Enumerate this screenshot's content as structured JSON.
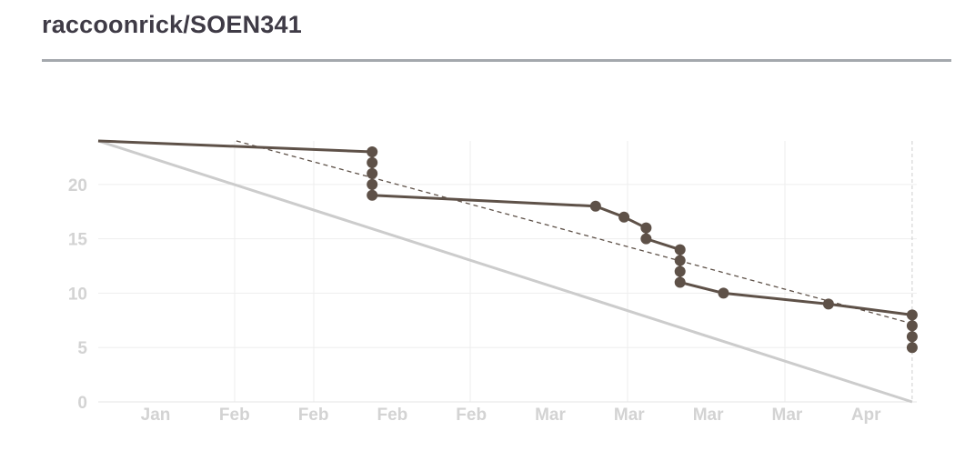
{
  "header": {
    "title": "raccoonrick/SOEN341"
  },
  "chart_data": {
    "type": "line",
    "title": "",
    "xlabel": "",
    "ylabel": "",
    "x_tick_labels": [
      "Jan",
      "Feb",
      "Feb",
      "Feb",
      "Feb",
      "Mar",
      "Mar",
      "Mar",
      "Mar",
      "Apr"
    ],
    "y_ticks": [
      0,
      5,
      10,
      15,
      20
    ],
    "ylim": [
      0,
      24
    ],
    "grid": true,
    "colors": {
      "actual": "#5e5148",
      "ideal": "#cccccc",
      "trend": "#5e5148",
      "grid": "#eeeeee",
      "tick": "#d3d3d3"
    },
    "series": [
      {
        "kind": "actual",
        "style": "solid line with point markers",
        "points": [
          {
            "x": 0.0,
            "y": 24,
            "marker": false
          },
          {
            "x": 3.47,
            "y": 23
          },
          {
            "x": 3.47,
            "y": 22
          },
          {
            "x": 3.47,
            "y": 21
          },
          {
            "x": 3.47,
            "y": 20
          },
          {
            "x": 3.47,
            "y": 19
          },
          {
            "x": 6.3,
            "y": 18
          },
          {
            "x": 6.66,
            "y": 17
          },
          {
            "x": 6.94,
            "y": 16
          },
          {
            "x": 6.94,
            "y": 15
          },
          {
            "x": 7.37,
            "y": 14
          },
          {
            "x": 7.37,
            "y": 13
          },
          {
            "x": 7.37,
            "y": 12
          },
          {
            "x": 7.37,
            "y": 11
          },
          {
            "x": 7.92,
            "y": 10
          },
          {
            "x": 9.25,
            "y": 9
          },
          {
            "x": 10.31,
            "y": 8
          },
          {
            "x": 10.31,
            "y": 7
          },
          {
            "x": 10.31,
            "y": 6
          },
          {
            "x": 10.31,
            "y": 5
          }
        ]
      },
      {
        "kind": "ideal",
        "style": "solid light gray line",
        "points": [
          {
            "x": 0.0,
            "y": 24
          },
          {
            "x": 10.31,
            "y": 0
          }
        ]
      },
      {
        "kind": "trend",
        "style": "dashed line",
        "points": [
          {
            "x": 1.75,
            "y": 24
          },
          {
            "x": 10.31,
            "y": 7.2
          }
        ]
      }
    ]
  }
}
